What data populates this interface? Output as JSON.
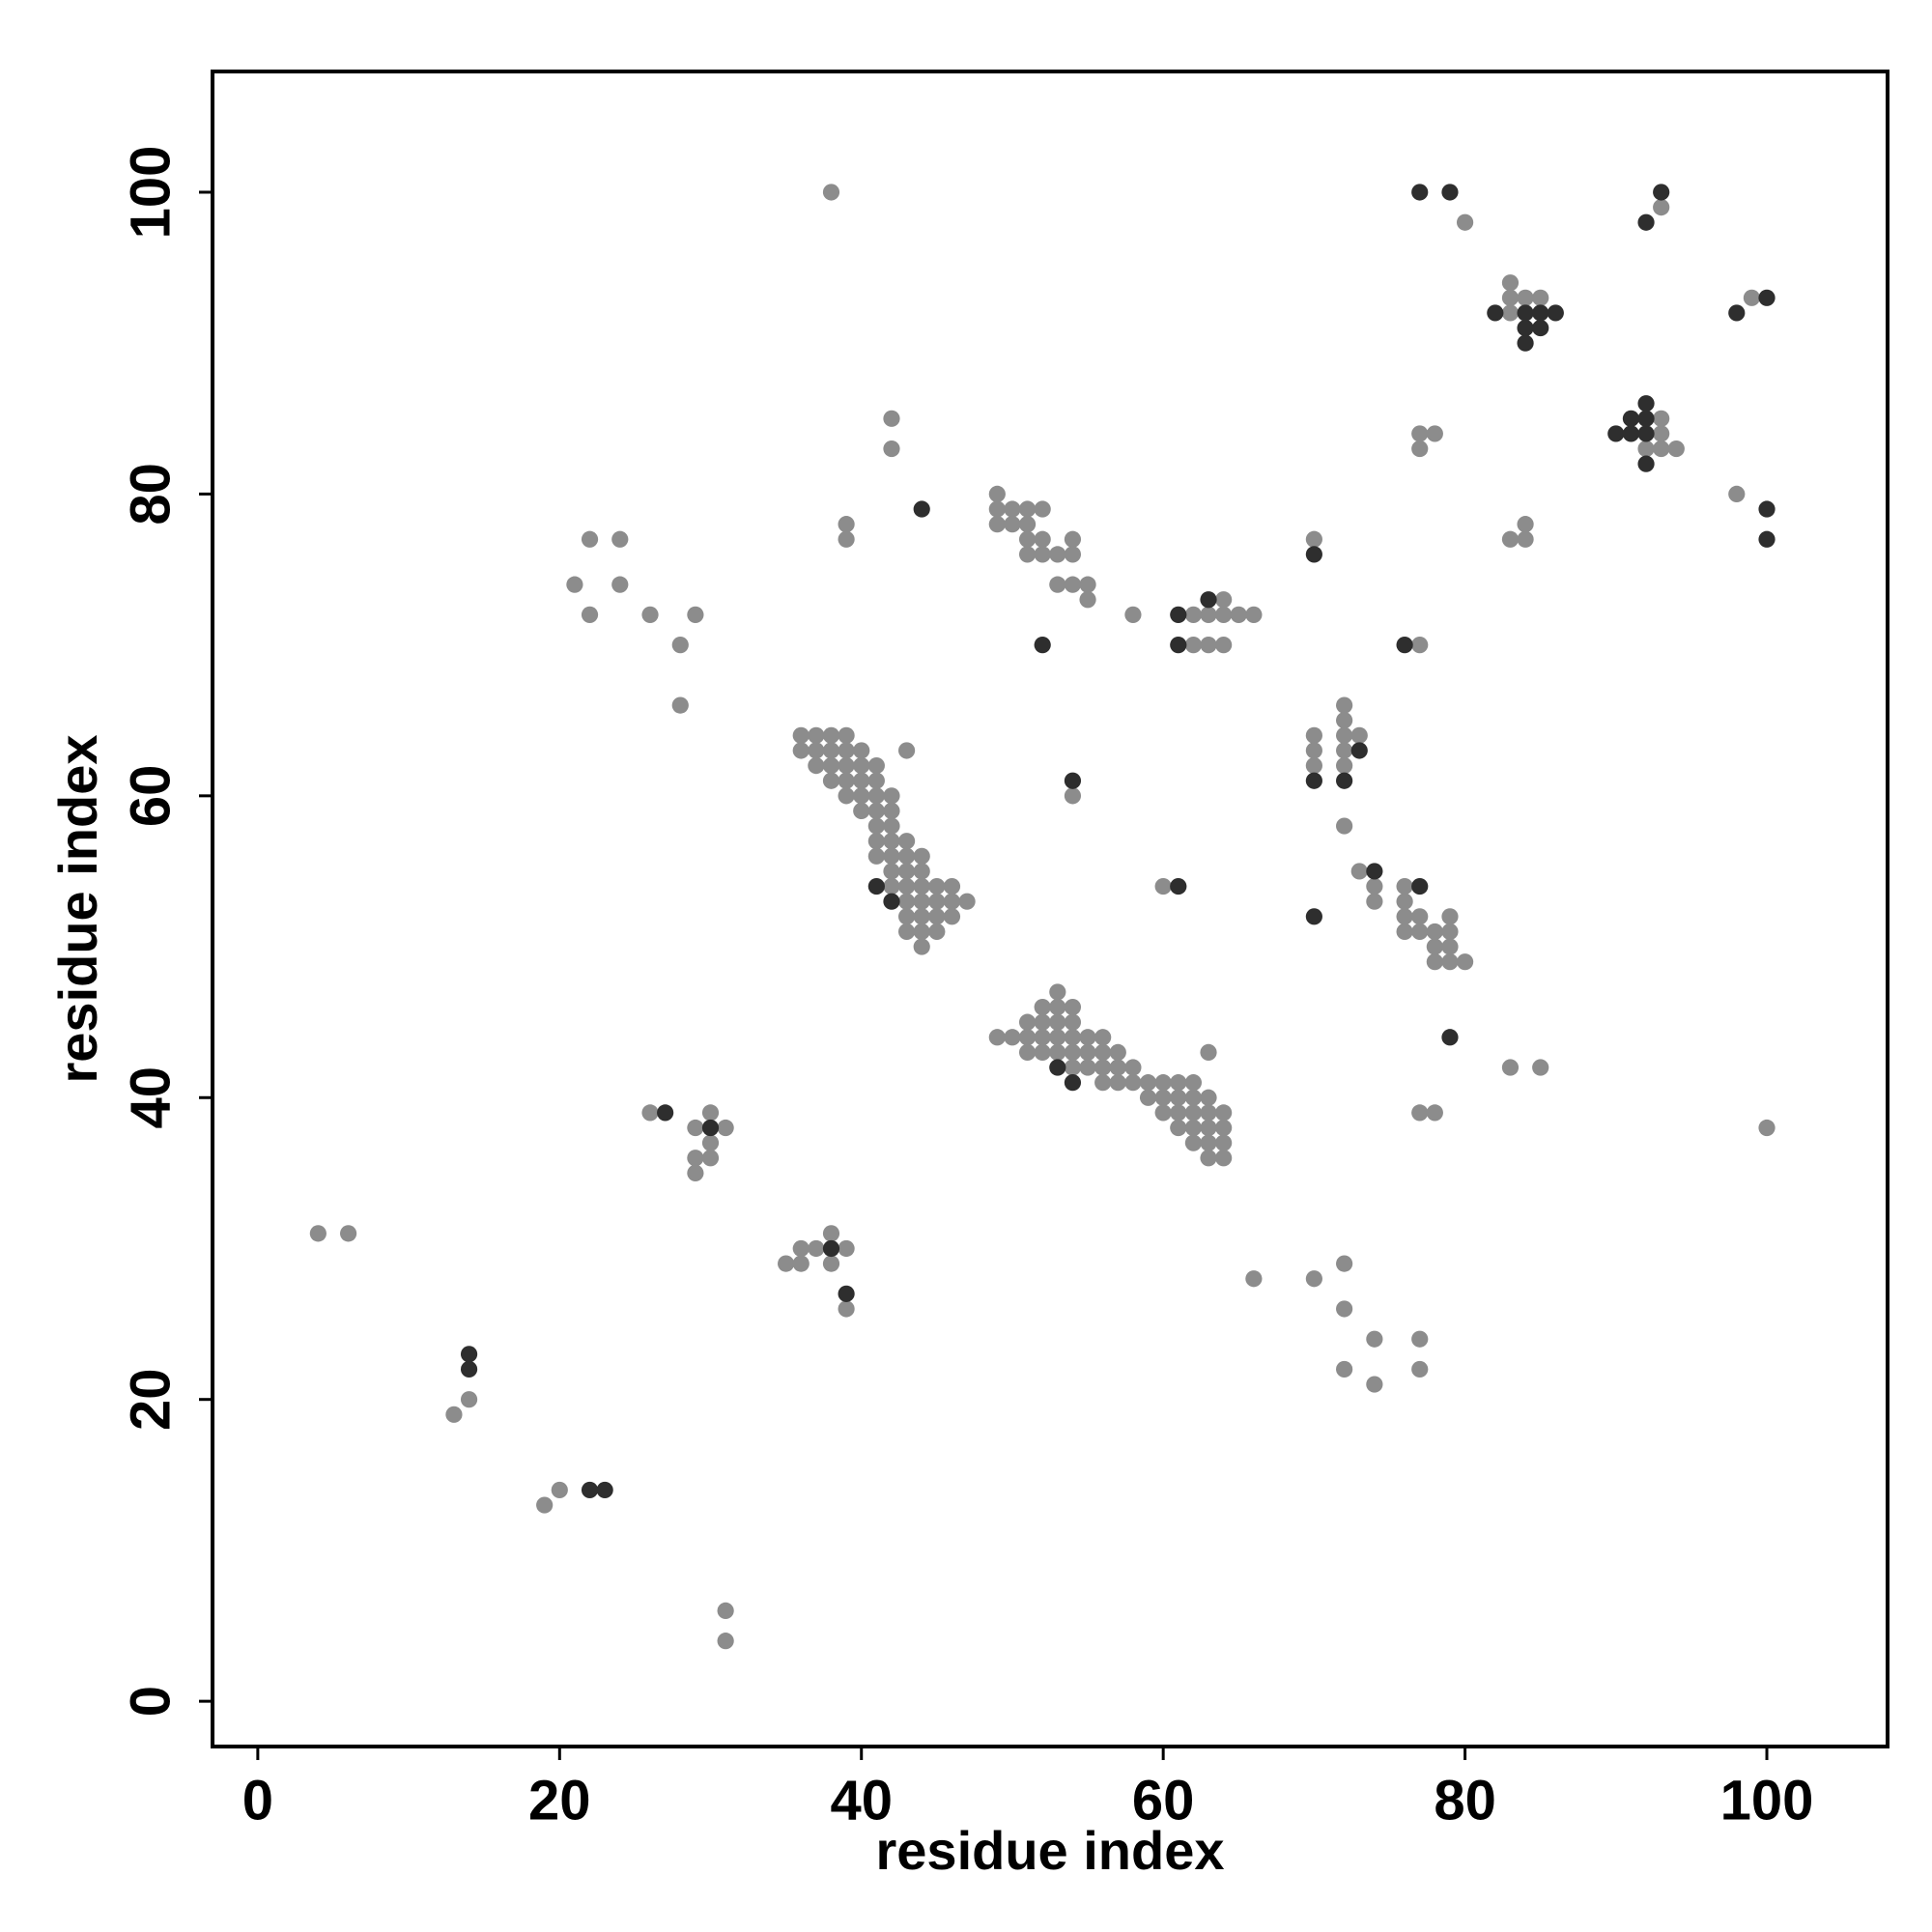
{
  "chart_data": {
    "type": "scatter",
    "xlabel": "residue index",
    "ylabel": "residue index",
    "xlim": [
      -3,
      108
    ],
    "ylim": [
      -3,
      108
    ],
    "xticks": [
      0,
      20,
      40,
      60,
      80,
      100
    ],
    "yticks": [
      0,
      20,
      40,
      60,
      80,
      100
    ],
    "series": [
      {
        "color": "#8c8c8c",
        "x": [
          4,
          6,
          13,
          14,
          19,
          20,
          31,
          31,
          26,
          29,
          29,
          29,
          30,
          30,
          30,
          31,
          35,
          36,
          36,
          37,
          38,
          38,
          39,
          39,
          21,
          22,
          22,
          24,
          24,
          26,
          28,
          28,
          29,
          38,
          39,
          39,
          42,
          42,
          43,
          36,
          37,
          38,
          39,
          36,
          37,
          38,
          39,
          40,
          37,
          38,
          39,
          40,
          41,
          38,
          39,
          40,
          41,
          39,
          40,
          41,
          42,
          40,
          41,
          42,
          41,
          42,
          41,
          42,
          43,
          41,
          42,
          43,
          44,
          42,
          43,
          44,
          42,
          43,
          44,
          45,
          46,
          43,
          44,
          45,
          46,
          47,
          43,
          44,
          45,
          46,
          43,
          44,
          45,
          44,
          49,
          49,
          50,
          51,
          52,
          49,
          50,
          51,
          51,
          52,
          54,
          51,
          52,
          53,
          54,
          53,
          54,
          55,
          55,
          58,
          62,
          63,
          64,
          65,
          66,
          64,
          62,
          63,
          64,
          54,
          60,
          53,
          52,
          53,
          54,
          51,
          52,
          53,
          54,
          49,
          50,
          51,
          52,
          53,
          54,
          55,
          56,
          51,
          52,
          53,
          54,
          55,
          56,
          57,
          63,
          54,
          55,
          56,
          57,
          58,
          56,
          57,
          58,
          59,
          60,
          61,
          62,
          59,
          60,
          61,
          62,
          63,
          60,
          61,
          62,
          63,
          64,
          61,
          62,
          63,
          64,
          62,
          63,
          64,
          63,
          64,
          70,
          70,
          70,
          70,
          72,
          72,
          72,
          72,
          72,
          73,
          72,
          73,
          74,
          74,
          76,
          76,
          76,
          76,
          77,
          77,
          78,
          78,
          78,
          79,
          79,
          79,
          79,
          80,
          77,
          77,
          77,
          78,
          83,
          84,
          84,
          83,
          85,
          77,
          78,
          66,
          70,
          72,
          72,
          72,
          74,
          74,
          77,
          77,
          80,
          83,
          83,
          84,
          85,
          83,
          93,
          93,
          93,
          93,
          92,
          94,
          99,
          98,
          100
        ],
        "values": [
          31,
          31,
          19,
          20,
          13,
          14,
          6,
          4,
          39,
          38,
          36,
          35,
          39,
          37,
          36,
          38,
          29,
          29,
          30,
          30,
          31,
          29,
          30,
          26,
          74,
          77,
          72,
          77,
          74,
          72,
          70,
          66,
          72,
          100,
          78,
          77,
          85,
          83,
          63,
          64,
          64,
          64,
          64,
          63,
          63,
          63,
          63,
          63,
          62,
          62,
          62,
          62,
          62,
          61,
          61,
          61,
          61,
          60,
          60,
          60,
          60,
          59,
          59,
          59,
          58,
          58,
          57,
          57,
          57,
          56,
          56,
          56,
          56,
          55,
          55,
          55,
          54,
          54,
          54,
          54,
          54,
          53,
          53,
          53,
          53,
          53,
          52,
          52,
          52,
          52,
          51,
          51,
          51,
          50,
          80,
          79,
          79,
          79,
          79,
          78,
          78,
          78,
          77,
          77,
          77,
          76,
          76,
          76,
          76,
          74,
          74,
          74,
          73,
          72,
          72,
          72,
          72,
          72,
          72,
          73,
          70,
          70,
          70,
          60,
          54,
          47,
          46,
          46,
          46,
          45,
          45,
          45,
          45,
          44,
          44,
          44,
          44,
          44,
          44,
          44,
          44,
          43,
          43,
          43,
          43,
          43,
          43,
          43,
          43,
          42,
          42,
          42,
          42,
          42,
          41,
          41,
          41,
          41,
          41,
          41,
          41,
          40,
          40,
          40,
          40,
          40,
          39,
          39,
          39,
          39,
          39,
          38,
          38,
          38,
          38,
          37,
          37,
          37,
          36,
          36,
          77,
          64,
          63,
          62,
          66,
          65,
          64,
          63,
          62,
          64,
          58,
          55,
          54,
          53,
          54,
          53,
          52,
          51,
          52,
          51,
          51,
          50,
          49,
          52,
          51,
          50,
          49,
          49,
          70,
          84,
          83,
          84,
          77,
          78,
          77,
          42,
          42,
          39,
          39,
          28,
          28,
          29,
          26,
          22,
          24,
          21,
          24,
          22,
          98,
          94,
          93,
          93,
          93,
          92,
          99,
          85,
          84,
          83,
          83,
          83,
          93,
          80,
          38
        ]
      },
      {
        "color": "#2e2e2e",
        "x": [
          14,
          14,
          22,
          23,
          27,
          30,
          38,
          39,
          44,
          41,
          42,
          52,
          61,
          61,
          63,
          54,
          61,
          53,
          54,
          70,
          70,
          72,
          73,
          70,
          74,
          77,
          76,
          79,
          77,
          79,
          82,
          84,
          84,
          84,
          85,
          85,
          86,
          93,
          92,
          90,
          91,
          91,
          92,
          92,
          92,
          92,
          98,
          100,
          100,
          100
        ],
        "values": [
          23,
          22,
          14,
          14,
          39,
          38,
          30,
          27,
          79,
          54,
          53,
          70,
          72,
          70,
          73,
          61,
          54,
          42,
          41,
          76,
          61,
          61,
          63,
          52,
          55,
          54,
          70,
          44,
          100,
          100,
          92,
          92,
          91,
          90,
          92,
          91,
          92,
          100,
          98,
          84,
          84,
          85,
          86,
          85,
          84,
          82,
          92,
          93,
          79,
          77
        ]
      }
    ]
  }
}
